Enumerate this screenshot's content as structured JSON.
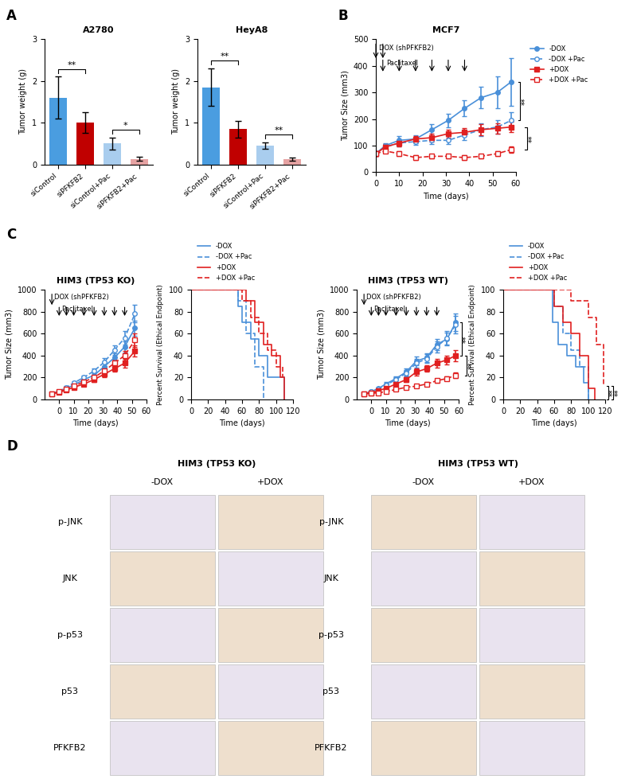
{
  "panel_labels": [
    "A",
    "B",
    "C",
    "D"
  ],
  "chart_data": [
    {
      "type": "bar",
      "title": "A2780",
      "ylabel": "Tumor weight (g)",
      "categories": [
        "siControl",
        "siPFKFB2",
        "siControl+Pac",
        "siPFKFB2+Pac"
      ],
      "values": [
        1.6,
        1.0,
        0.5,
        0.13
      ],
      "errors": [
        0.5,
        0.25,
        0.15,
        0.05
      ],
      "colors": [
        "#4a9de0",
        "#c00000",
        "#a9cdee",
        "#e6a3a3"
      ],
      "ylim": [
        0,
        3
      ],
      "yticks": [
        0,
        1,
        2,
        3
      ],
      "significance": [
        {
          "label": "**",
          "pair": [
            0,
            1
          ]
        },
        {
          "label": "*",
          "pair": [
            2,
            3
          ]
        }
      ]
    },
    {
      "type": "bar",
      "title": "HeyA8",
      "ylabel": "Tumor weight (g)",
      "categories": [
        "siControl",
        "siPFKFB2",
        "siControl+Pac",
        "siPFKFB2+Pac"
      ],
      "values": [
        1.85,
        0.85,
        0.45,
        0.12
      ],
      "errors": [
        0.45,
        0.2,
        0.08,
        0.04
      ],
      "colors": [
        "#4a9de0",
        "#c00000",
        "#a9cdee",
        "#e6a3a3"
      ],
      "ylim": [
        0,
        3
      ],
      "yticks": [
        0,
        1,
        2,
        3
      ],
      "significance": [
        {
          "label": "**",
          "pair": [
            0,
            1
          ]
        },
        {
          "label": "**",
          "pair": [
            2,
            3
          ]
        }
      ]
    },
    {
      "type": "line",
      "title": "MCF7",
      "xlabel": "Time (days)",
      "ylabel": "Tumor Size (mm3)",
      "x": [
        0,
        4,
        10,
        17,
        24,
        31,
        38,
        45,
        52,
        58
      ],
      "series": [
        {
          "name": "-DOX",
          "color": "#4a90d9",
          "marker": "o",
          "line_style": "solid",
          "values": [
            70,
            100,
            120,
            125,
            160,
            195,
            240,
            280,
            300,
            340
          ],
          "errors": [
            10,
            10,
            15,
            15,
            20,
            25,
            30,
            40,
            60,
            90
          ]
        },
        {
          "name": "-DOX +Pac",
          "color": "#4a90d9",
          "marker": "o",
          "line_style": "dashed",
          "values": [
            70,
            95,
            110,
            115,
            120,
            120,
            140,
            160,
            170,
            195
          ],
          "errors": [
            10,
            10,
            12,
            12,
            15,
            15,
            20,
            25,
            25,
            30
          ]
        },
        {
          "name": "+DOX",
          "color": "#e02020",
          "marker": "s",
          "line_style": "solid",
          "values": [
            70,
            95,
            110,
            125,
            130,
            145,
            150,
            160,
            165,
            170
          ],
          "errors": [
            10,
            10,
            12,
            12,
            15,
            15,
            15,
            20,
            20,
            20
          ]
        },
        {
          "name": "+DOX +Pac",
          "color": "#e02020",
          "marker": "s",
          "line_style": "dashed",
          "values": [
            70,
            80,
            70,
            55,
            60,
            60,
            55,
            60,
            70,
            85
          ],
          "errors": [
            8,
            8,
            8,
            8,
            8,
            8,
            8,
            8,
            10,
            12
          ]
        }
      ],
      "xlim": [
        0,
        60
      ],
      "xticks": [
        0,
        10,
        20,
        30,
        40,
        50,
        60
      ],
      "ylim": [
        0,
        500
      ],
      "yticks": [
        0,
        100,
        200,
        300,
        400,
        500
      ],
      "arrows": [
        {
          "label": "DOX (shPFKFB2)",
          "days": [
            0,
            3
          ]
        },
        {
          "label": "Paclitaxel",
          "days": [
            3,
            10,
            17,
            24,
            31,
            38
          ]
        }
      ],
      "significance": [
        {
          "label": "**",
          "pair": [
            0,
            1
          ]
        },
        {
          "label": "**",
          "pair": [
            2,
            3
          ]
        }
      ],
      "legend": "upper left"
    },
    {
      "type": "line",
      "title": "HIM3 (TP53 KO)",
      "xlabel": "Time (days)",
      "ylabel": "Tumor Size (mm3)",
      "x": [
        -5,
        0,
        5,
        10,
        17,
        24,
        31,
        38,
        45,
        52
      ],
      "series": [
        {
          "name": "-DOX",
          "color": "#4a90d9",
          "marker": "o",
          "line_style": "solid",
          "values": [
            50,
            70,
            100,
            130,
            180,
            220,
            300,
            380,
            480,
            650
          ],
          "errors": [
            5,
            8,
            10,
            15,
            20,
            25,
            30,
            40,
            50,
            70
          ]
        },
        {
          "name": "-DOX +Pac",
          "color": "#4a90d9",
          "marker": "o",
          "line_style": "dashed",
          "values": [
            50,
            75,
            110,
            150,
            200,
            260,
            340,
            450,
            560,
            780
          ],
          "errors": [
            5,
            8,
            10,
            15,
            20,
            25,
            35,
            45,
            60,
            80
          ]
        },
        {
          "name": "+DOX",
          "color": "#e02020",
          "marker": "s",
          "line_style": "solid",
          "values": [
            50,
            65,
            85,
            110,
            140,
            180,
            230,
            280,
            330,
            440
          ],
          "errors": [
            5,
            8,
            10,
            12,
            15,
            20,
            25,
            30,
            40,
            50
          ]
        },
        {
          "name": "+DOX +Pac",
          "color": "#e02020",
          "marker": "s",
          "line_style": "dashed",
          "values": [
            50,
            70,
            95,
            120,
            160,
            200,
            260,
            330,
            400,
            540
          ],
          "errors": [
            5,
            8,
            10,
            12,
            15,
            20,
            25,
            35,
            45,
            60
          ]
        }
      ],
      "xlim": [
        -10,
        60
      ],
      "xticks": [
        0,
        10,
        20,
        30,
        40,
        50,
        60
      ],
      "ylim": [
        0,
        1000
      ],
      "yticks": [
        0,
        200,
        400,
        600,
        800,
        1000
      ],
      "arrows": [
        {
          "label": "DOX (shPFKFB2)",
          "days": [
            -5
          ]
        },
        {
          "label": "Paclitaxel",
          "days": [
            0,
            5,
            10,
            17,
            24,
            31,
            38,
            45
          ]
        }
      ],
      "significance": []
    },
    {
      "type": "step",
      "ylabel": "Percent Survival (Ethical Endpoint)",
      "xlabel": "Time (days)",
      "series": [
        {
          "name": "-DOX",
          "color": "#4a90d9",
          "line_style": "solid",
          "x": [
            0,
            55,
            60,
            70,
            80,
            90,
            110
          ],
          "values": [
            100,
            85,
            70,
            55,
            40,
            20,
            0
          ]
        },
        {
          "name": "-DOX +Pac",
          "color": "#4a90d9",
          "line_style": "dashed",
          "x": [
            0,
            55,
            65,
            75,
            85
          ],
          "values": [
            100,
            90,
            60,
            30,
            0
          ]
        },
        {
          "name": "+DOX",
          "color": "#e02020",
          "line_style": "solid",
          "x": [
            0,
            65,
            75,
            85,
            95,
            105,
            110
          ],
          "values": [
            100,
            90,
            70,
            50,
            40,
            20,
            0
          ]
        },
        {
          "name": "+DOX +Pac",
          "color": "#e02020",
          "line_style": "dashed",
          "x": [
            0,
            60,
            70,
            80,
            90,
            100,
            108
          ],
          "values": [
            100,
            90,
            75,
            60,
            45,
            30,
            20
          ]
        }
      ],
      "xlim": [
        0,
        120
      ],
      "xticks": [
        0,
        20,
        40,
        60,
        80,
        100,
        120
      ],
      "ylim": [
        0,
        100
      ],
      "yticks": [
        0,
        20,
        40,
        60,
        80,
        100
      ],
      "significance": [],
      "legend": "lower left"
    },
    {
      "type": "line",
      "title": "HIM3 (TP53 WT)",
      "xlabel": "Time (days)",
      "ylabel": "Tumor Size (mm3)",
      "x": [
        -5,
        0,
        5,
        10,
        17,
        24,
        31,
        38,
        45,
        52,
        58
      ],
      "series": [
        {
          "name": "-DOX",
          "color": "#4a90d9",
          "marker": "o",
          "line_style": "solid",
          "values": [
            50,
            70,
            100,
            140,
            190,
            250,
            350,
            380,
            500,
            550,
            700
          ],
          "errors": [
            5,
            8,
            10,
            15,
            20,
            30,
            40,
            40,
            50,
            60,
            80
          ]
        },
        {
          "name": "-DOX +Pac",
          "color": "#4a90d9",
          "marker": "o",
          "line_style": "dashed",
          "values": [
            50,
            70,
            95,
            130,
            180,
            240,
            330,
            370,
            480,
            560,
            680
          ],
          "errors": [
            5,
            8,
            10,
            15,
            20,
            30,
            40,
            40,
            50,
            60,
            80
          ]
        },
        {
          "name": "+DOX",
          "color": "#e02020",
          "marker": "s",
          "line_style": "solid",
          "values": [
            50,
            60,
            80,
            100,
            140,
            180,
            250,
            280,
            330,
            360,
            400
          ],
          "errors": [
            5,
            6,
            8,
            10,
            15,
            20,
            30,
            30,
            40,
            40,
            50
          ]
        },
        {
          "name": "+DOX +Pac",
          "color": "#e02020",
          "marker": "s",
          "line_style": "dashed",
          "values": [
            50,
            55,
            60,
            70,
            90,
            110,
            120,
            140,
            170,
            190,
            220
          ],
          "errors": [
            5,
            5,
            6,
            8,
            10,
            12,
            15,
            15,
            20,
            20,
            25
          ]
        }
      ],
      "xlim": [
        -10,
        60
      ],
      "xticks": [
        0,
        10,
        20,
        30,
        40,
        50,
        60
      ],
      "ylim": [
        0,
        1000
      ],
      "yticks": [
        0,
        200,
        400,
        600,
        800,
        1000
      ],
      "arrows": [
        {
          "label": "DOX (shPFKFB2)",
          "days": [
            -5
          ]
        },
        {
          "label": "Paclitaxel",
          "days": [
            0,
            5,
            10,
            17,
            24,
            31,
            38,
            45
          ]
        }
      ],
      "significance": [
        {
          "label": "**",
          "pair": [
            0,
            2
          ]
        },
        {
          "label": "**",
          "pair": [
            2,
            3
          ]
        }
      ]
    },
    {
      "type": "step",
      "ylabel": "Percent Survival (Ethical Endpoint)",
      "xlabel": "Time (days)",
      "series": [
        {
          "name": "-DOX",
          "color": "#4a90d9",
          "line_style": "solid",
          "x": [
            0,
            58,
            65,
            75,
            85,
            95,
            100
          ],
          "values": [
            100,
            70,
            50,
            40,
            30,
            15,
            0
          ]
        },
        {
          "name": "-DOX +Pac",
          "color": "#4a90d9",
          "line_style": "dashed",
          "x": [
            0,
            60,
            70,
            80,
            90,
            100
          ],
          "values": [
            100,
            85,
            60,
            45,
            30,
            0
          ]
        },
        {
          "name": "+DOX",
          "color": "#e02020",
          "line_style": "solid",
          "x": [
            0,
            60,
            70,
            80,
            90,
            100,
            108
          ],
          "values": [
            100,
            85,
            70,
            60,
            40,
            10,
            0
          ]
        },
        {
          "name": "+DOX +Pac",
          "color": "#e02020",
          "line_style": "dashed",
          "x": [
            0,
            80,
            100,
            110,
            118
          ],
          "values": [
            100,
            90,
            75,
            50,
            12
          ]
        }
      ],
      "xlim": [
        0,
        120
      ],
      "xticks": [
        0,
        20,
        40,
        60,
        80,
        100,
        120
      ],
      "ylim": [
        0,
        100
      ],
      "yticks": [
        0,
        20,
        40,
        60,
        80,
        100
      ],
      "significance": [
        {
          "label": "**",
          "pair": [
            0,
            3
          ]
        },
        {
          "label": "**",
          "pair": [
            2,
            3
          ]
        }
      ],
      "legend": "lower left"
    }
  ],
  "ihc": {
    "groups": [
      {
        "title": "HIM3 (TP53 KO)",
        "columns": [
          "-DOX",
          "+DOX"
        ]
      },
      {
        "title": "HIM3 (TP53 WT)",
        "columns": [
          "-DOX",
          "+DOX"
        ]
      }
    ],
    "rows": [
      "p-JNK",
      "JNK",
      "p-p53",
      "p53",
      "PFKFB2"
    ]
  }
}
